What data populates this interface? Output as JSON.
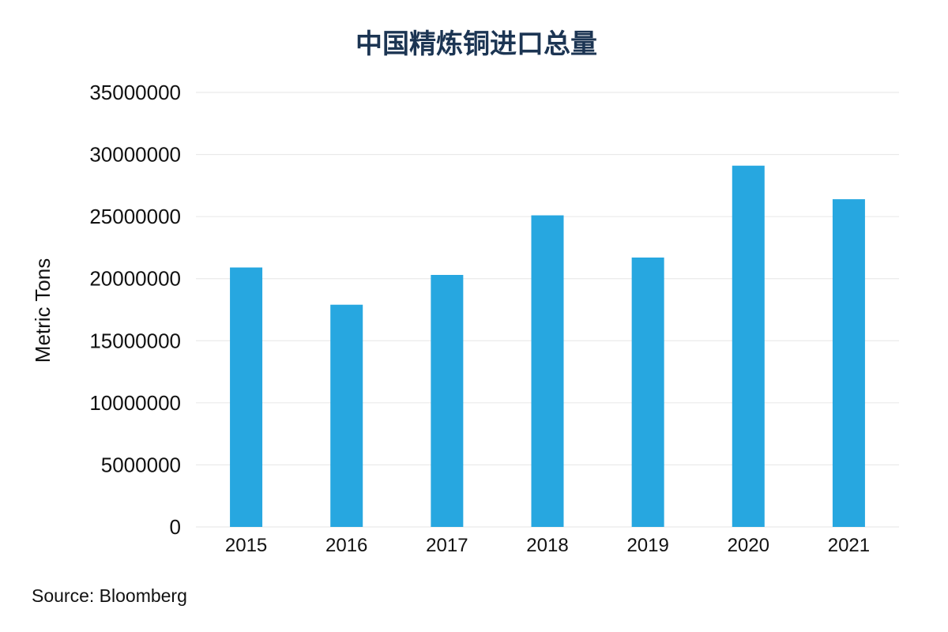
{
  "chart_data": {
    "type": "bar",
    "title": "中国精炼铜进口总量",
    "ylabel": "Metric Tons",
    "xlabel": "",
    "categories": [
      "2015",
      "2016",
      "2017",
      "2018",
      "2019",
      "2020",
      "2021"
    ],
    "values": [
      20900000,
      17900000,
      20300000,
      25100000,
      21700000,
      29100000,
      26400000
    ],
    "ylim": [
      0,
      35000000
    ],
    "yticks": [
      "0",
      "5000000",
      "10000000",
      "15000000",
      "20000000",
      "25000000",
      "30000000",
      "35000000"
    ],
    "grid": true,
    "bar_color": "#27a7e0",
    "source": "Source: Bloomberg"
  }
}
